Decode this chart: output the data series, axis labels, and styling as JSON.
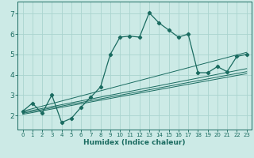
{
  "xlabel": "Humidex (Indice chaleur)",
  "bg_color": "#cceae6",
  "grid_color": "#aad4cf",
  "line_color": "#1a6b60",
  "xlim": [
    -0.5,
    23.5
  ],
  "ylim": [
    1.3,
    7.6
  ],
  "yticks": [
    2,
    3,
    4,
    5,
    6,
    7
  ],
  "xticks": [
    0,
    1,
    2,
    3,
    4,
    5,
    6,
    7,
    8,
    9,
    10,
    11,
    12,
    13,
    14,
    15,
    16,
    17,
    18,
    19,
    20,
    21,
    22,
    23
  ],
  "curve1_x": [
    0,
    1,
    2,
    3,
    4,
    5,
    6,
    7,
    8,
    9,
    10,
    11,
    12,
    13,
    14,
    15,
    16,
    17,
    18,
    19,
    20,
    21,
    22,
    23
  ],
  "curve1_y": [
    2.2,
    2.6,
    2.1,
    3.0,
    1.65,
    1.85,
    2.4,
    2.9,
    3.4,
    5.0,
    5.85,
    5.9,
    5.85,
    7.05,
    6.55,
    6.2,
    5.85,
    6.0,
    4.1,
    4.1,
    4.4,
    4.15,
    4.9,
    5.0
  ],
  "line1_x": [
    0,
    23
  ],
  "line1_y": [
    2.05,
    4.05
  ],
  "line2_x": [
    0,
    23
  ],
  "line2_y": [
    2.1,
    4.15
  ],
  "line3_x": [
    0,
    23
  ],
  "line3_y": [
    2.15,
    4.3
  ],
  "line4_x": [
    0,
    23
  ],
  "line4_y": [
    2.2,
    5.1
  ],
  "marker": "D",
  "marker_size": 2.2,
  "linewidth": 0.9
}
